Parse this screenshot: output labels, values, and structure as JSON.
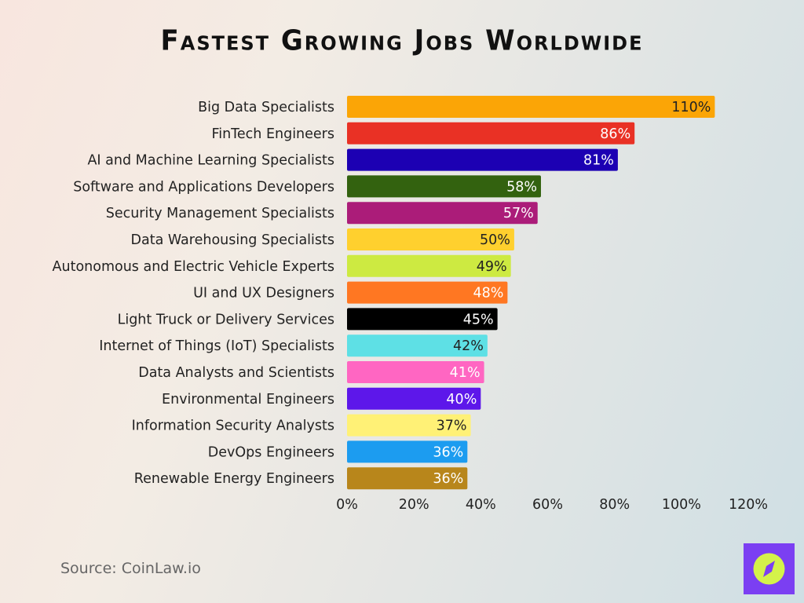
{
  "title": "Fastest Growing Jobs Worldwide",
  "source": "Source: CoinLaw.io",
  "logo": {
    "icon": "compass-icon",
    "colors": {
      "bg": "#7b3ff2",
      "fg": "#d4f24a"
    }
  },
  "chart_data": {
    "type": "bar",
    "orientation": "horizontal",
    "title": "Fastest Growing Jobs Worldwide",
    "categories": [
      "Big Data Specialists",
      "FinTech Engineers",
      "AI and Machine Learning Specialists",
      "Software and Applications Developers",
      "Security Management Specialists",
      "Data Warehousing Specialists",
      "Autonomous and Electric Vehicle Experts",
      "UI and UX Designers",
      "Light Truck or Delivery Services",
      "Internet of Things (IoT) Specialists",
      "Data Analysts and Scientists",
      "Environmental Engineers",
      "Information Security Analysts",
      "DevOps Engineers",
      "Renewable Energy Engineers"
    ],
    "values": [
      110,
      86,
      81,
      58,
      57,
      50,
      49,
      48,
      45,
      42,
      41,
      40,
      37,
      36,
      36
    ],
    "data_labels": [
      "110%",
      "86%",
      "81%",
      "58%",
      "57%",
      "50%",
      "49%",
      "48%",
      "45%",
      "42%",
      "41%",
      "40%",
      "37%",
      "36%",
      "36%"
    ],
    "colors": [
      "#fba506",
      "#e93125",
      "#1c00b3",
      "#33620f",
      "#ab1c79",
      "#ffd02e",
      "#cdea41",
      "#ff7722",
      "#000000",
      "#5ee0e5",
      "#ff66c2",
      "#5d17ea",
      "#fff176",
      "#1c9cf0",
      "#b8861b"
    ],
    "label_colors": [
      "#222222",
      "#ffffff",
      "#ffffff",
      "#ffffff",
      "#ffffff",
      "#222222",
      "#222222",
      "#ffffff",
      "#ffffff",
      "#222222",
      "#ffffff",
      "#ffffff",
      "#222222",
      "#ffffff",
      "#ffffff"
    ],
    "xlim": [
      0,
      120
    ],
    "xticks": [
      "0%",
      "20%",
      "40%",
      "60%",
      "80%",
      "100%",
      "120%"
    ],
    "grid": false,
    "xlabel": "",
    "ylabel": ""
  }
}
